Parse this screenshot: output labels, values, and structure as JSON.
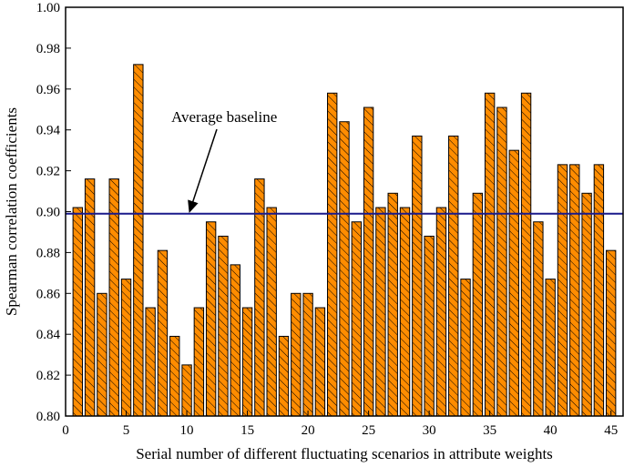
{
  "chart_data": {
    "type": "bar",
    "title": "",
    "xlabel": "Serial number of different fluctuating scenarios in attribute weights",
    "ylabel": "Spearman correlation coefficients",
    "xlim": [
      0,
      46
    ],
    "ylim": [
      0.8,
      1.0
    ],
    "x_ticks": [
      0,
      5,
      10,
      15,
      20,
      25,
      30,
      35,
      40,
      45
    ],
    "y_ticks": [
      0.8,
      0.82,
      0.84,
      0.86,
      0.88,
      0.9,
      0.92,
      0.94,
      0.96,
      0.98,
      1.0
    ],
    "categories": [
      1,
      2,
      3,
      4,
      5,
      6,
      7,
      8,
      9,
      10,
      11,
      12,
      13,
      14,
      15,
      16,
      17,
      18,
      19,
      20,
      21,
      22,
      23,
      24,
      25,
      26,
      27,
      28,
      29,
      30,
      31,
      32,
      33,
      34,
      35,
      36,
      37,
      38,
      39,
      40,
      41,
      42,
      43,
      44,
      45
    ],
    "values": [
      0.902,
      0.916,
      0.86,
      0.916,
      0.867,
      0.972,
      0.853,
      0.881,
      0.839,
      0.825,
      0.853,
      0.895,
      0.888,
      0.874,
      0.853,
      0.916,
      0.902,
      0.839,
      0.86,
      0.86,
      0.853,
      0.958,
      0.944,
      0.895,
      0.951,
      0.902,
      0.909,
      0.902,
      0.937,
      0.888,
      0.902,
      0.937,
      0.867,
      0.909,
      0.958,
      0.951,
      0.93,
      0.958,
      0.895,
      0.867,
      0.923,
      0.923,
      0.909,
      0.923,
      0.881
    ],
    "bar_color": "#ff8c00",
    "bar_pattern": "diagonal-hatch",
    "baseline": {
      "value": 0.899,
      "label": "Average baseline",
      "color": "#1a1a8c"
    },
    "grid": false
  }
}
